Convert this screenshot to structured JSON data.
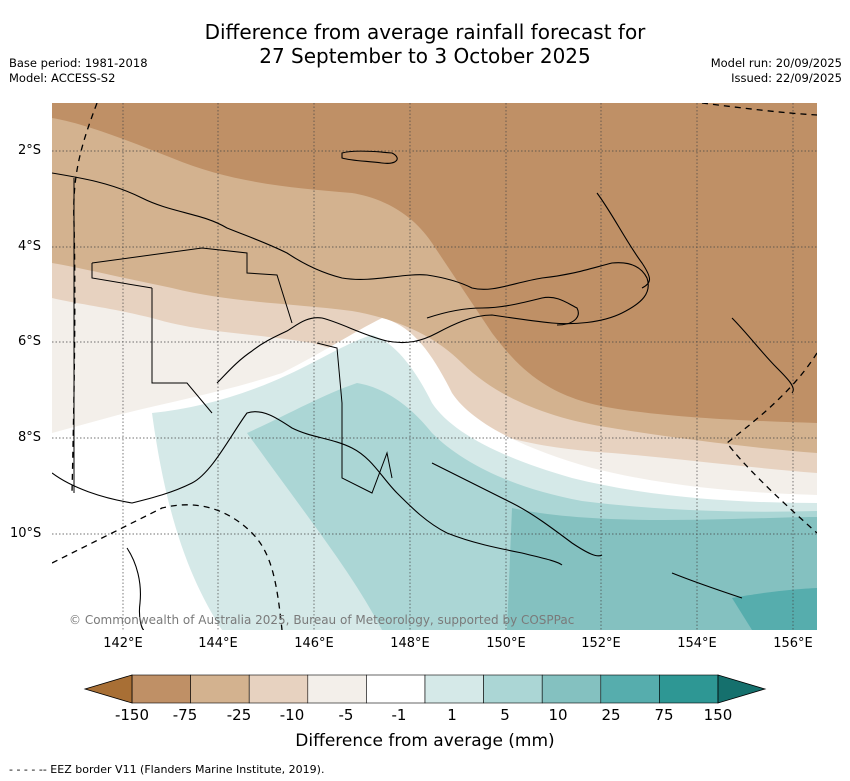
{
  "title": {
    "line1": "Difference from average rainfall forecast for",
    "line2": "27 September to 3 October 2025"
  },
  "meta_left": {
    "base_period": "Base period: 1981-2018",
    "model": "Model: ACCESS-S2"
  },
  "meta_right": {
    "model_run": "Model run: 20/09/2025",
    "issued": "Issued: 22/09/2025"
  },
  "map": {
    "lat_labels": [
      "2°S",
      "4°S",
      "6°S",
      "8°S",
      "10°S"
    ],
    "lon_labels": [
      "142°E",
      "144°E",
      "146°E",
      "148°E",
      "150°E",
      "152°E",
      "154°E",
      "156°E"
    ],
    "credit": "© Commonwealth of Australia 2025, Bureau of Meteorology, supported by COSPPac"
  },
  "legend": {
    "ticks": [
      "-150",
      "-75",
      "-25",
      "-10",
      "-5",
      "-1",
      "1",
      "5",
      "10",
      "25",
      "75",
      "150"
    ],
    "colors": [
      "#a86f35",
      "#bf9066",
      "#d3b28f",
      "#e7d2c0",
      "#f3efea",
      "#ffffff",
      "#d5e9e8",
      "#abd6d5",
      "#84c1c0",
      "#56adad",
      "#2e9794",
      "#15706d"
    ],
    "title": "Difference from average (mm)"
  },
  "footer": "- -  - -  -- EEZ border V11 (Flanders Marine Institute, 2019)."
}
